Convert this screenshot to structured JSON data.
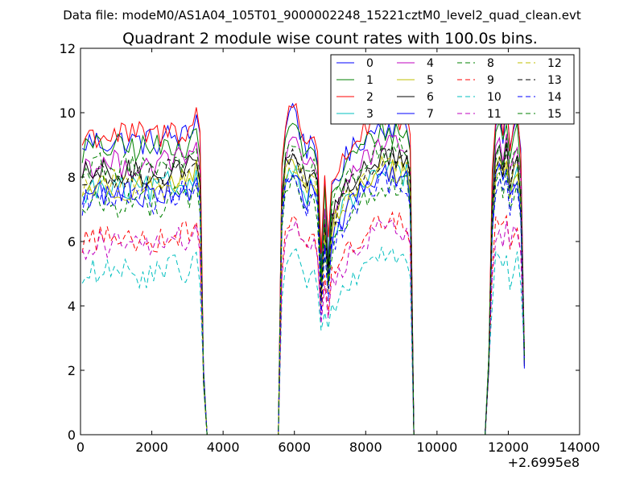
{
  "suptitle": "Data file: modeM0/AS1A04_105T01_9000002248_15221cztM0_level2_quad_clean.evt",
  "x_offset_label": "+2.6995e8",
  "chart_data": {
    "type": "line",
    "title": "Quadrant 2 module wise count rates with 100.0s bins.",
    "xlabel": "",
    "ylabel": "",
    "xlim": [
      0,
      14000
    ],
    "ylim": [
      0,
      12
    ],
    "x_ticks": [
      "0",
      "2000",
      "4000",
      "6000",
      "8000",
      "10000",
      "12000",
      "14000"
    ],
    "y_ticks": [
      "0",
      "2",
      "4",
      "6",
      "8",
      "10",
      "12"
    ],
    "grid": false,
    "legend_position": "top-right",
    "legend_columns": 4,
    "segments": [
      {
        "t0": 50,
        "t1": 3350,
        "drop_end": 3600
      },
      {
        "t0": 5550,
        "t1": 6750,
        "dip_end": 6950
      },
      {
        "t0": 6950,
        "t1": 9250,
        "drop_end": 9350
      },
      {
        "t0": 11350,
        "t1": 12450,
        "drop_end": 12500
      }
    ],
    "zero_gaps": [
      [
        3600,
        5550
      ],
      [
        9350,
        11350
      ]
    ],
    "series": [
      {
        "name": "0",
        "color": "#0000ff",
        "dashed": false,
        "level": 9.1,
        "peak": 10.3,
        "dip": 4.8
      },
      {
        "name": "1",
        "color": "#008000",
        "dashed": false,
        "level": 8.9,
        "peak": 9.8,
        "dip": 4.6
      },
      {
        "name": "2",
        "color": "#ff0000",
        "dashed": false,
        "level": 9.3,
        "peak": 10.4,
        "dip": 5.5
      },
      {
        "name": "3",
        "color": "#00bfbf",
        "dashed": false,
        "level": 7.6,
        "peak": 8.4,
        "dip": 4.0
      },
      {
        "name": "4",
        "color": "#bf00bf",
        "dashed": false,
        "level": 8.4,
        "peak": 9.2,
        "dip": 4.4
      },
      {
        "name": "5",
        "color": "#bfbf00",
        "dashed": false,
        "level": 7.7,
        "peak": 8.6,
        "dip": 4.2
      },
      {
        "name": "6",
        "color": "#000000",
        "dashed": false,
        "level": 8.1,
        "peak": 8.9,
        "dip": 4.5
      },
      {
        "name": "7",
        "color": "#0000ff",
        "dashed": false,
        "level": 7.5,
        "peak": 8.3,
        "dip": 4.3
      },
      {
        "name": "8",
        "color": "#008000",
        "dashed": true,
        "level": 7.2,
        "peak": 8.0,
        "dip": 4.0
      },
      {
        "name": "9",
        "color": "#ff0000",
        "dashed": true,
        "level": 6.1,
        "peak": 6.8,
        "dip": 3.6
      },
      {
        "name": "10",
        "color": "#00bfbf",
        "dashed": true,
        "level": 5.0,
        "peak": 5.8,
        "dip": 3.2
      },
      {
        "name": "11",
        "color": "#bf00bf",
        "dashed": true,
        "level": 5.9,
        "peak": 6.6,
        "dip": 3.5
      },
      {
        "name": "12",
        "color": "#bfbf00",
        "dashed": true,
        "level": 7.8,
        "peak": 8.5,
        "dip": 4.3
      },
      {
        "name": "13",
        "color": "#000000",
        "dashed": true,
        "level": 8.0,
        "peak": 8.8,
        "dip": 4.4
      },
      {
        "name": "14",
        "color": "#0000ff",
        "dashed": true,
        "level": 7.3,
        "peak": 8.1,
        "dip": 4.0
      },
      {
        "name": "15",
        "color": "#008000",
        "dashed": true,
        "level": 8.3,
        "peak": 9.1,
        "dip": 4.5
      }
    ]
  }
}
